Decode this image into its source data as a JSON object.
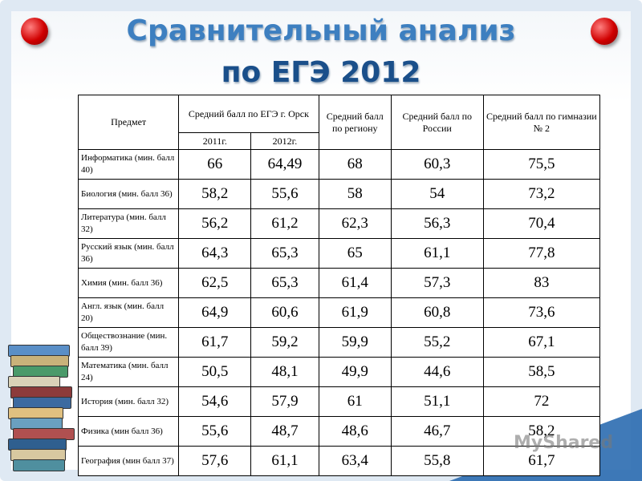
{
  "header": {
    "title": [
      "Сравнительный анализ",
      "по ЕГЭ 2012"
    ]
  },
  "table": {
    "header": {
      "subject": "Предмет",
      "orsk": "Средний балл  по ЕГЭ г. Орск",
      "year_2011": "2011г.",
      "year_2012": "2012г.",
      "region": "Средний балл по региону",
      "russia": "Средний балл по России",
      "gymnasium": "Средний балл по гимназии № 2"
    },
    "rows": [
      [
        "Информатика (мин. балл 40)",
        "66",
        "64,49",
        "68",
        "60,3",
        "75,5"
      ],
      [
        "Биология (мин. балл 36)",
        "58,2",
        "55,6",
        "58",
        "54",
        "73,2"
      ],
      [
        "Литература (мин. балл 32)",
        "56,2",
        "61,2",
        "62,3",
        "56,3",
        "70,4"
      ],
      [
        "Русский язык (мин. балл 36)",
        "64,3",
        "65,3",
        "65",
        "61,1",
        "77,8"
      ],
      [
        "Химия (мин. балл 36)",
        "62,5",
        "65,3",
        "61,4",
        "57,3",
        "83"
      ],
      [
        "Англ. язык (мин. балл 20)",
        "64,9",
        "60,6",
        "61,9",
        "60,8",
        "73,6"
      ],
      [
        "Обществознание (мин. балл 39)",
        "61,7",
        "59,2",
        "59,9",
        "55,2",
        "67,1"
      ],
      [
        "Математика (мин. балл 24)",
        "50,5",
        "48,1",
        "49,9",
        "44,6",
        "58,5"
      ],
      [
        "История (мин. балл 32)",
        "54,6",
        "57,9",
        "61",
        "51,1",
        "72"
      ],
      [
        "Физика (мин балл 36)",
        "55,6",
        "48,7",
        "48,6",
        "46,7",
        "58,2"
      ],
      [
        "География (мин балл 37)",
        "57,6",
        "61,1",
        "63,4",
        "55,8",
        "61,7"
      ]
    ]
  },
  "watermark": "MyShared"
}
